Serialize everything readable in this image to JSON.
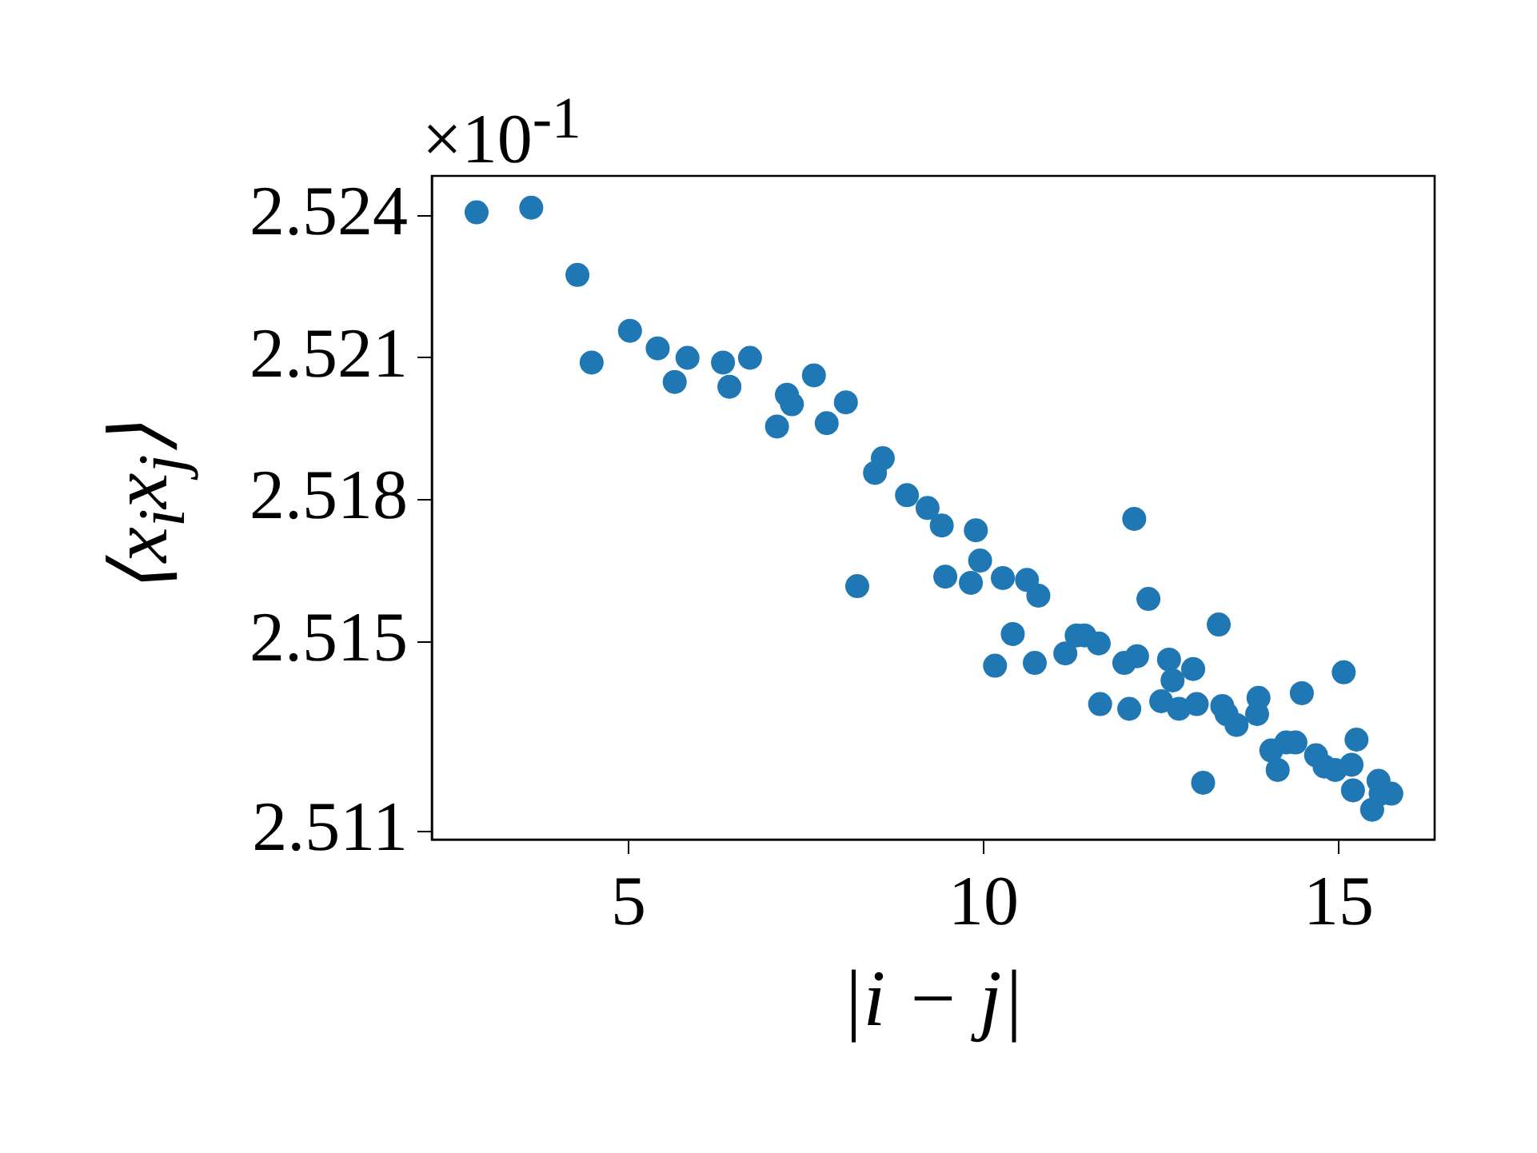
{
  "chart_data": {
    "type": "scatter",
    "xlabel": "|i − j|",
    "ylabel": "⟨x$_{i}$x$_{j}$⟩",
    "annotations": [
      "×10$^{-1}$"
    ],
    "marker": "circle",
    "color": "#1f77b4",
    "x": [
      2.86,
      3.63,
      4.28,
      4.48,
      5.02,
      5.41,
      5.65,
      5.83,
      6.33,
      6.42,
      6.71,
      7.09,
      7.23,
      7.3,
      7.61,
      7.79,
      8.06,
      8.22,
      8.47,
      8.58,
      8.92,
      9.21,
      9.41,
      9.46,
      9.82,
      9.89,
      9.95,
      10.16,
      10.27,
      10.41,
      10.61,
      10.72,
      10.77,
      11.15,
      11.31,
      11.42,
      11.62,
      11.64,
      11.98,
      12.05,
      12.12,
      12.16,
      12.32,
      12.5,
      12.61,
      12.66,
      12.75,
      12.95,
      13.0,
      13.09,
      13.31,
      13.36,
      13.42,
      13.56,
      13.85,
      13.87,
      14.05,
      14.14,
      14.26,
      14.39,
      14.48,
      14.68,
      14.8,
      14.95,
      15.07,
      15.18,
      15.2,
      15.25,
      15.47,
      15.56,
      15.59,
      15.74
    ],
    "values": [
      2.52407,
      2.52417,
      2.52275,
      2.5209,
      2.52157,
      2.5212,
      2.52049,
      2.521,
      2.5209,
      2.52039,
      2.521,
      2.51955,
      2.52022,
      2.52002,
      2.52063,
      2.51962,
      2.52006,
      2.51618,
      2.51857,
      2.51888,
      2.5181,
      2.51783,
      2.51746,
      2.51638,
      2.51625,
      2.51736,
      2.51672,
      2.5145,
      2.51635,
      2.51517,
      2.51631,
      2.51456,
      2.51598,
      2.51476,
      2.51514,
      2.51514,
      2.51497,
      2.51369,
      2.51456,
      2.51359,
      2.5176,
      2.5147,
      2.51591,
      2.51375,
      2.51463,
      2.51419,
      2.51359,
      2.51443,
      2.51369,
      2.51203,
      2.51537,
      2.51365,
      2.51348,
      2.51325,
      2.51348,
      2.51382,
      2.51271,
      2.5123,
      2.51288,
      2.51288,
      2.51392,
      2.51261,
      2.51237,
      2.5123,
      2.51436,
      2.51241,
      2.51187,
      2.51294,
      2.51146,
      2.51207,
      2.5118,
      2.5118
    ],
    "xlim": [
      2.23,
      16.35
    ],
    "ylim": [
      2.51083,
      2.52484
    ],
    "xticks": [
      5,
      10,
      15
    ],
    "yticks": [
      2.511,
      2.515,
      2.518,
      2.521,
      2.524
    ]
  }
}
